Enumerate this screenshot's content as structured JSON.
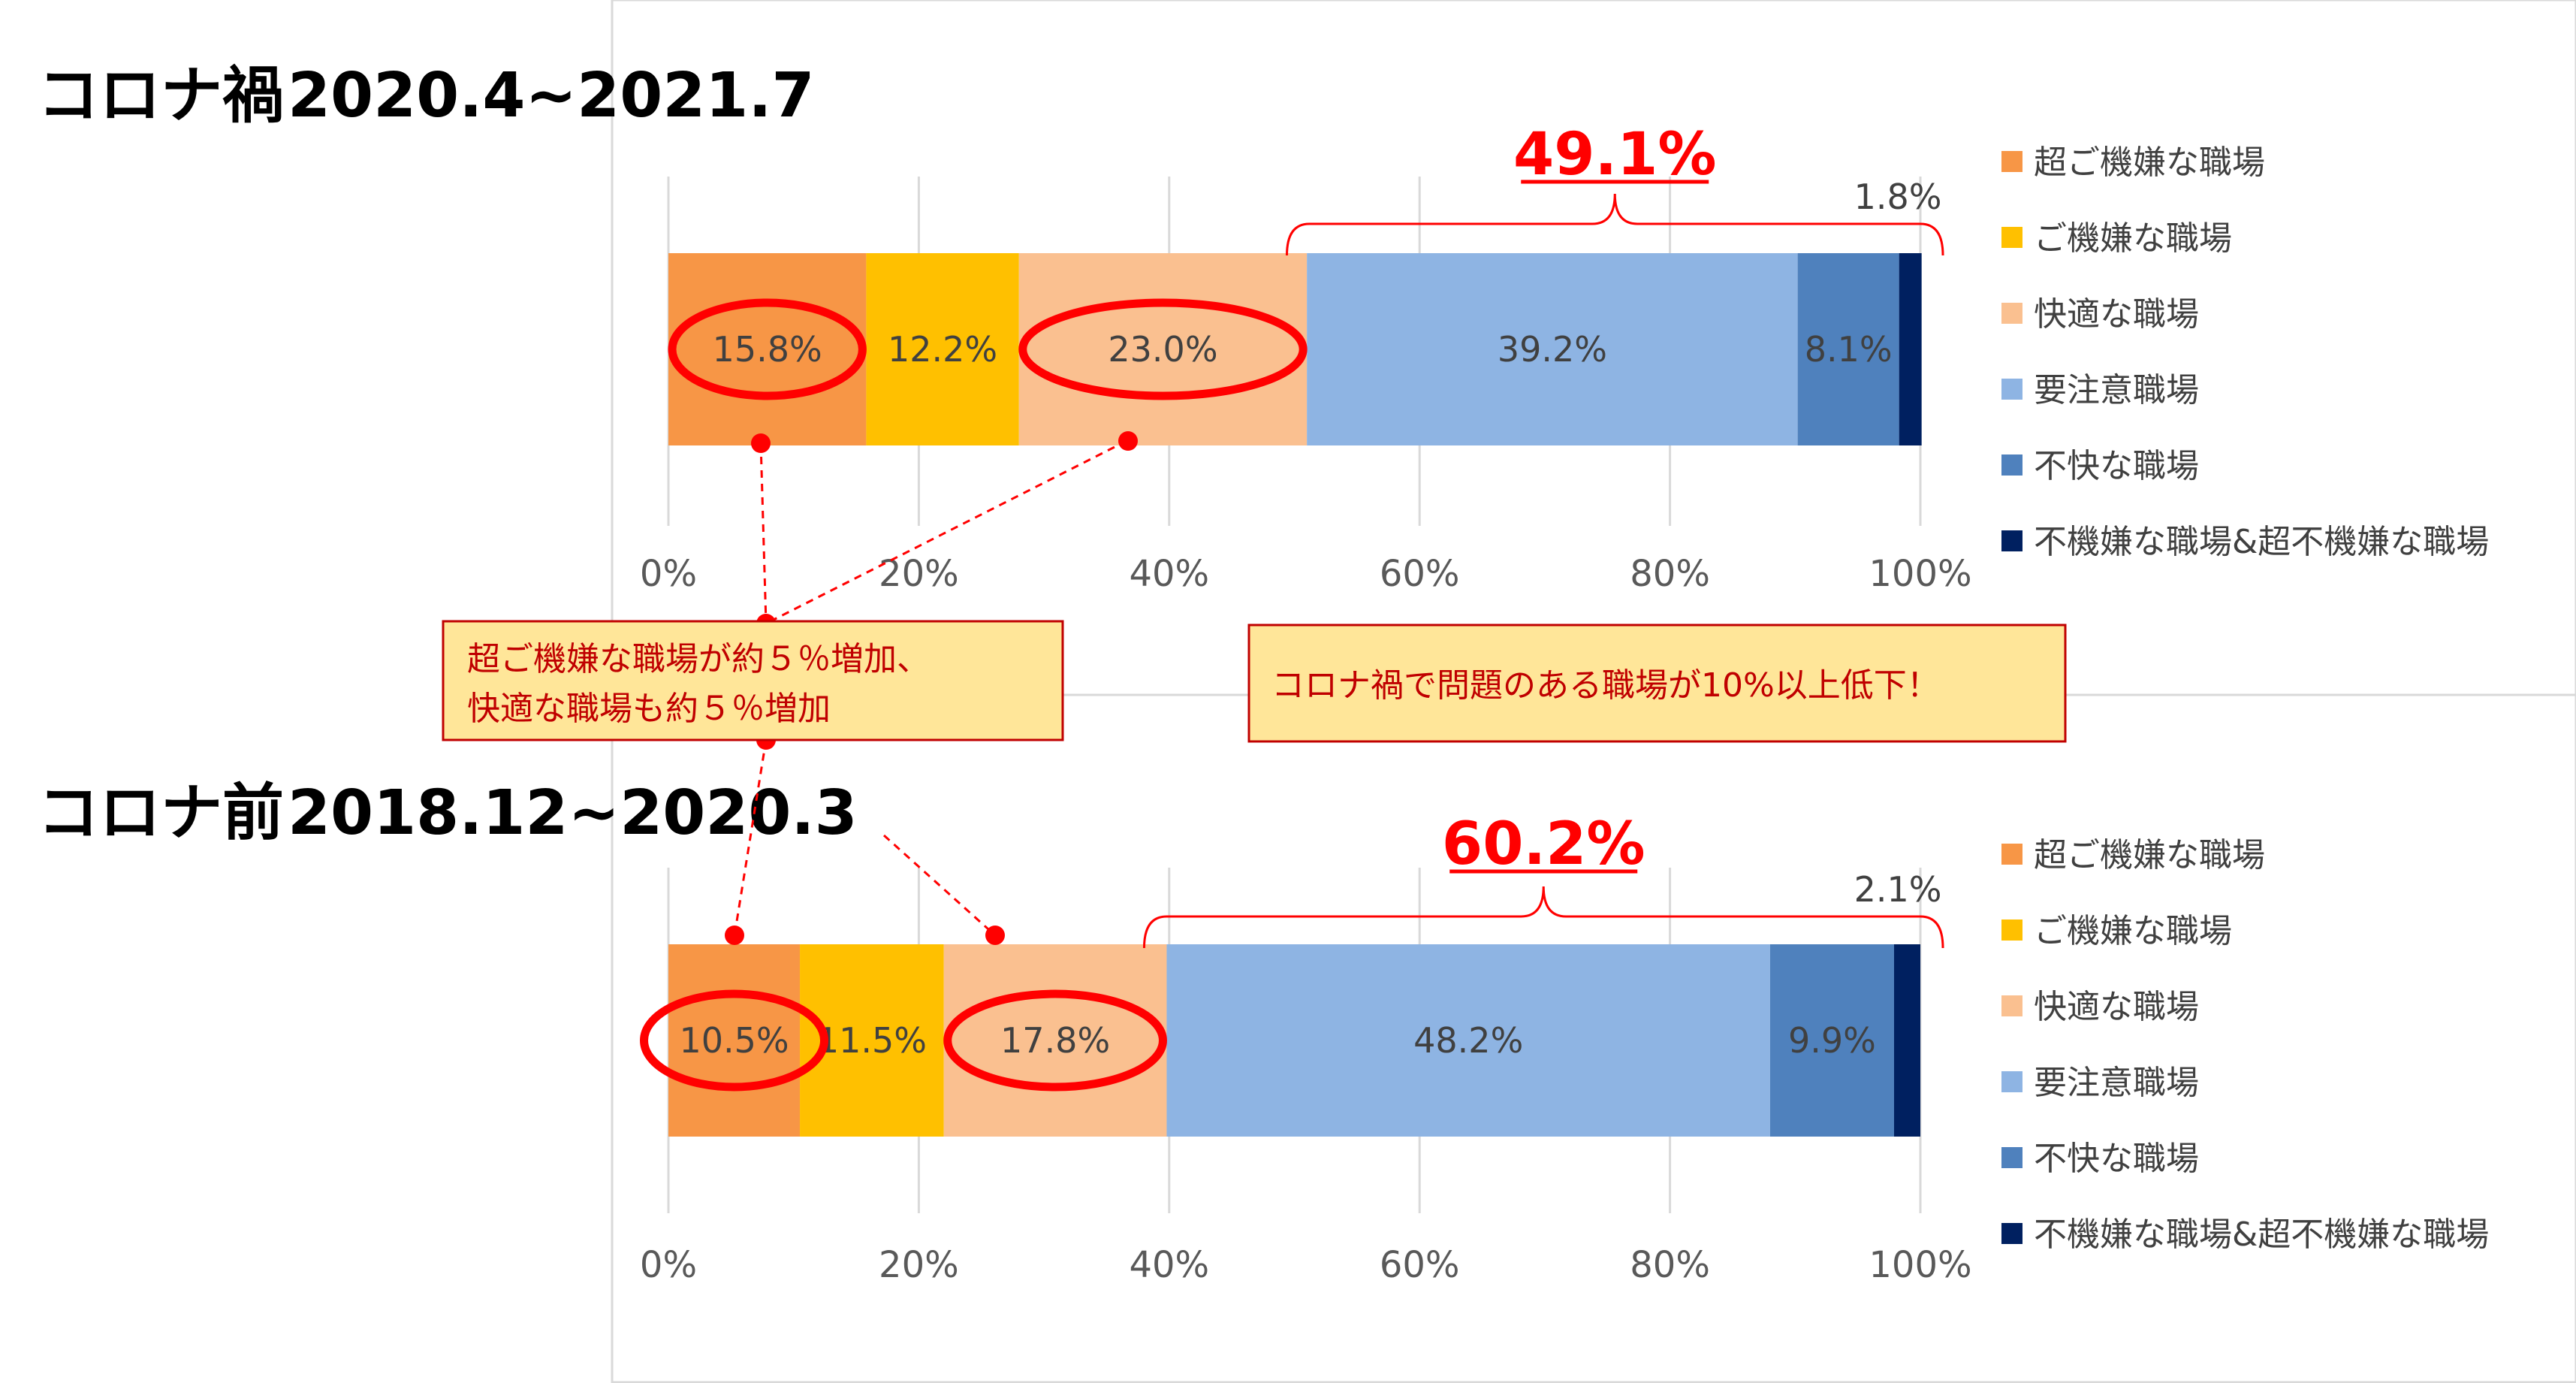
{
  "colors": {
    "series": [
      "#f79646",
      "#ffc000",
      "#fac090",
      "#8eb4e3",
      "#4f81bd",
      "#002060"
    ],
    "highlight": "#ff0000",
    "callout_fill": "#ffe699",
    "callout_border": "#c00000",
    "callout_text": "#c00000",
    "grid": "#d9d9d9",
    "panel_border": "#d9d9d9"
  },
  "chart_data": [
    {
      "type": "bar",
      "orientation": "horizontal",
      "stacked": "percent",
      "title": "コロナ禍 2020.4~2021.7",
      "title_parts": [
        "コロナ禍",
        "2020.4~2021.7"
      ],
      "series": [
        {
          "name": "超ご機嫌な職場",
          "value": 15.8,
          "label": "15.8%"
        },
        {
          "name": "ご機嫌な職場",
          "value": 12.2,
          "label": "12.2%"
        },
        {
          "name": "快適な職場",
          "value": 23.0,
          "label": "23.0%"
        },
        {
          "name": "要注意職場",
          "value": 39.2,
          "label": "39.2%"
        },
        {
          "name": "不快な職場",
          "value": 8.1,
          "label": "8.1%"
        },
        {
          "name": "不機嫌な職場&超不機嫌な職場",
          "value": 1.8,
          "label": ""
        }
      ],
      "xlim": [
        0,
        100
      ],
      "x_ticks": [
        "0%",
        "20%",
        "40%",
        "60%",
        "80%",
        "100%"
      ],
      "grid": true,
      "legend": "right",
      "bracket_total": "49.1%",
      "bracket_start": 49.1,
      "small_segment_label": "1.8%",
      "circled_segments": [
        0,
        2
      ]
    },
    {
      "type": "bar",
      "orientation": "horizontal",
      "stacked": "percent",
      "title": "コロナ前 2018.12~2020.3",
      "title_parts": [
        "コロナ前",
        "2018.12~2020.3"
      ],
      "series": [
        {
          "name": "超ご機嫌な職場",
          "value": 10.5,
          "label": "10.5%"
        },
        {
          "name": "ご機嫌な職場",
          "value": 11.5,
          "label": "11.5%"
        },
        {
          "name": "快適な職場",
          "value": 17.8,
          "label": "17.8%"
        },
        {
          "name": "要注意職場",
          "value": 48.2,
          "label": "48.2%"
        },
        {
          "name": "不快な職場",
          "value": 9.9,
          "label": "9.9%"
        },
        {
          "name": "不機嫌な職場&超不機嫌な職場",
          "value": 2.1,
          "label": ""
        }
      ],
      "xlim": [
        0,
        100
      ],
      "x_ticks": [
        "0%",
        "20%",
        "40%",
        "60%",
        "80%",
        "100%"
      ],
      "grid": true,
      "legend": "right",
      "bracket_total": "60.2%",
      "bracket_start": 37.7,
      "small_segment_label": "2.1%",
      "circled_segments": [
        0,
        2
      ]
    }
  ],
  "callouts": {
    "left": [
      "超ご機嫌な職場が約５％増加、",
      "快適な職場も約５％増加"
    ],
    "right": "コロナ禍で問題のある職場が10%以上低下！"
  }
}
